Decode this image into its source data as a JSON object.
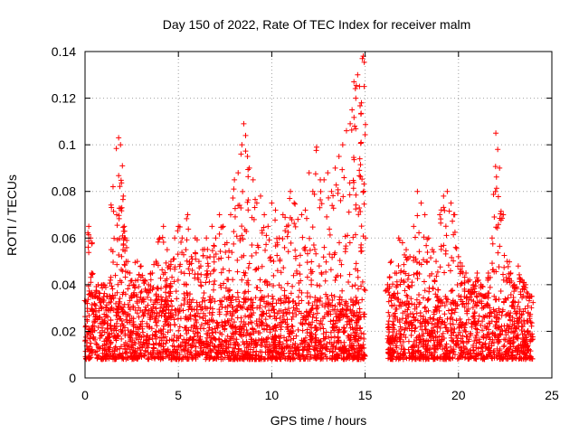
{
  "chart_data": {
    "type": "scatter",
    "title": "Day 150 of 2022, Rate Of TEC Index for receiver malm",
    "xlabel": "GPS time / hours",
    "ylabel": "ROTI / TECUs",
    "xlim": [
      0,
      25
    ],
    "ylim": [
      0,
      0.14
    ],
    "xticks": [
      "0",
      "5",
      "10",
      "15",
      "20",
      "25"
    ],
    "yticks": [
      "0",
      "0.02",
      "0.04",
      "0.06",
      "0.08",
      "0.1",
      "0.12",
      "0.14"
    ],
    "grid": true,
    "marker": "+",
    "color": "#ff0000",
    "series": [
      {
        "x": [
          0.1,
          0.2,
          0.3,
          0.35,
          0.5,
          0.7,
          0.9,
          1.0,
          1.2,
          1.4,
          1.5,
          1.7,
          1.8,
          1.9,
          2.0,
          2.05,
          2.1,
          2.15,
          2.2,
          2.4,
          2.6,
          2.8,
          3.0,
          3.2,
          3.4,
          3.6,
          3.8,
          4.0,
          4.2,
          4.4,
          4.5,
          4.6,
          4.8,
          5.0,
          5.2,
          5.4,
          5.5,
          5.7,
          5.9,
          6.1,
          6.3,
          6.5,
          6.6,
          6.8,
          7.0,
          7.2,
          7.4,
          7.6,
          7.8,
          8.0,
          8.2,
          8.4,
          8.5,
          8.6,
          8.7,
          8.8,
          9.0,
          9.2,
          9.4,
          9.6,
          9.8,
          10.0,
          10.2,
          10.4,
          10.6,
          10.8,
          11.0,
          11.2,
          11.4,
          11.6,
          11.8,
          12.0,
          12.2,
          12.4,
          12.6,
          12.8,
          13.0,
          13.2,
          13.4,
          13.6,
          13.8,
          14.0,
          14.2,
          14.3,
          14.4,
          14.5,
          14.6,
          14.7,
          14.8,
          14.85,
          14.9,
          14.95,
          16.2,
          16.4,
          16.6,
          16.8,
          17.0,
          17.2,
          17.4,
          17.6,
          17.8,
          18.0,
          18.2,
          18.4,
          18.6,
          18.8,
          19.0,
          19.2,
          19.4,
          19.6,
          19.8,
          20.0,
          20.2,
          20.4,
          20.6,
          20.8,
          21.0,
          21.2,
          21.4,
          21.6,
          21.8,
          22.0,
          22.1,
          22.2,
          22.4,
          22.6,
          22.8,
          23.0,
          23.2,
          23.4,
          23.6,
          23.8
        ],
        "y": [
          0.025,
          0.065,
          0.06,
          0.045,
          0.035,
          0.04,
          0.03,
          0.04,
          0.035,
          0.055,
          0.082,
          0.07,
          0.103,
          0.1,
          0.091,
          0.078,
          0.065,
          0.06,
          0.05,
          0.045,
          0.04,
          0.05,
          0.048,
          0.042,
          0.04,
          0.045,
          0.05,
          0.06,
          0.065,
          0.055,
          0.048,
          0.05,
          0.06,
          0.065,
          0.06,
          0.055,
          0.07,
          0.052,
          0.06,
          0.05,
          0.055,
          0.06,
          0.048,
          0.065,
          0.06,
          0.07,
          0.065,
          0.058,
          0.07,
          0.085,
          0.088,
          0.1,
          0.109,
          0.104,
          0.095,
          0.09,
          0.085,
          0.075,
          0.078,
          0.07,
          0.065,
          0.075,
          0.072,
          0.06,
          0.07,
          0.065,
          0.08,
          0.075,
          0.068,
          0.07,
          0.072,
          0.088,
          0.08,
          0.099,
          0.085,
          0.085,
          0.088,
          0.08,
          0.09,
          0.095,
          0.1,
          0.106,
          0.109,
          0.115,
          0.127,
          0.12,
          0.13,
          0.125,
          0.118,
          0.137,
          0.138,
          0.125,
          0.04,
          0.05,
          0.045,
          0.06,
          0.058,
          0.055,
          0.052,
          0.065,
          0.08,
          0.075,
          0.07,
          0.06,
          0.055,
          0.05,
          0.07,
          0.078,
          0.08,
          0.075,
          0.07,
          0.052,
          0.048,
          0.045,
          0.042,
          0.04,
          0.045,
          0.04,
          0.035,
          0.045,
          0.06,
          0.105,
          0.098,
          0.09,
          0.07,
          0.05,
          0.045,
          0.04,
          0.048,
          0.042,
          0.04,
          0.035
        ]
      }
    ],
    "band": {
      "segments": [
        [
          0.0,
          15.0
        ],
        [
          16.2,
          24.0
        ]
      ],
      "low": 0.008,
      "high": 0.035
    }
  }
}
